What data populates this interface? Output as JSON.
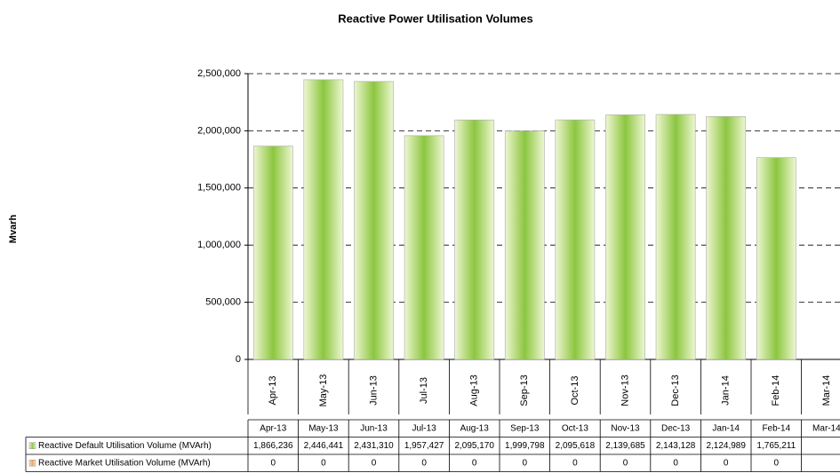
{
  "chart_data": {
    "type": "bar",
    "title": "Reactive Power Utilisation Volumes",
    "y_label": "Mvarh",
    "categories": [
      "Apr-13",
      "May-13",
      "Jun-13",
      "Jul-13",
      "Aug-13",
      "Sep-13",
      "Oct-13",
      "Nov-13",
      "Dec-13",
      "Jan-14",
      "Feb-14",
      "Mar-14"
    ],
    "series": [
      {
        "name": "Reactive Default Utilisation Volume (MVArh)",
        "color": "#8cc63f",
        "values": [
          1866236,
          2446441,
          2431310,
          1957427,
          2095170,
          1999798,
          2095618,
          2139685,
          2143128,
          2124989,
          1765211,
          null
        ],
        "value_labels": [
          "1,866,236",
          "2,446,441",
          "2,431,310",
          "1,957,427",
          "2,095,170",
          "1,999,798",
          "2,095,618",
          "2,139,685",
          "2,143,128",
          "2,124,989",
          "1,765,211",
          null
        ]
      },
      {
        "name": "Reactive Market Utilisation Volume (MVArh)",
        "color": "#f4a460",
        "values": [
          0,
          0,
          0,
          0,
          0,
          0,
          0,
          0,
          0,
          0,
          0,
          null
        ]
      }
    ],
    "ylim": [
      0,
      2500000
    ],
    "yticks": [
      0,
      {
        "value": 500000,
        "label": "500,000"
      },
      {
        "value": 1000000,
        "label": "1,000,000"
      },
      {
        "value": 1500000,
        "label": "1,500,000"
      },
      {
        "value": 2000000,
        "label": "2,000,000"
      },
      {
        "value": 2500000,
        "label": "2,500,000"
      }
    ],
    "grid": true,
    "data_table": true
  }
}
